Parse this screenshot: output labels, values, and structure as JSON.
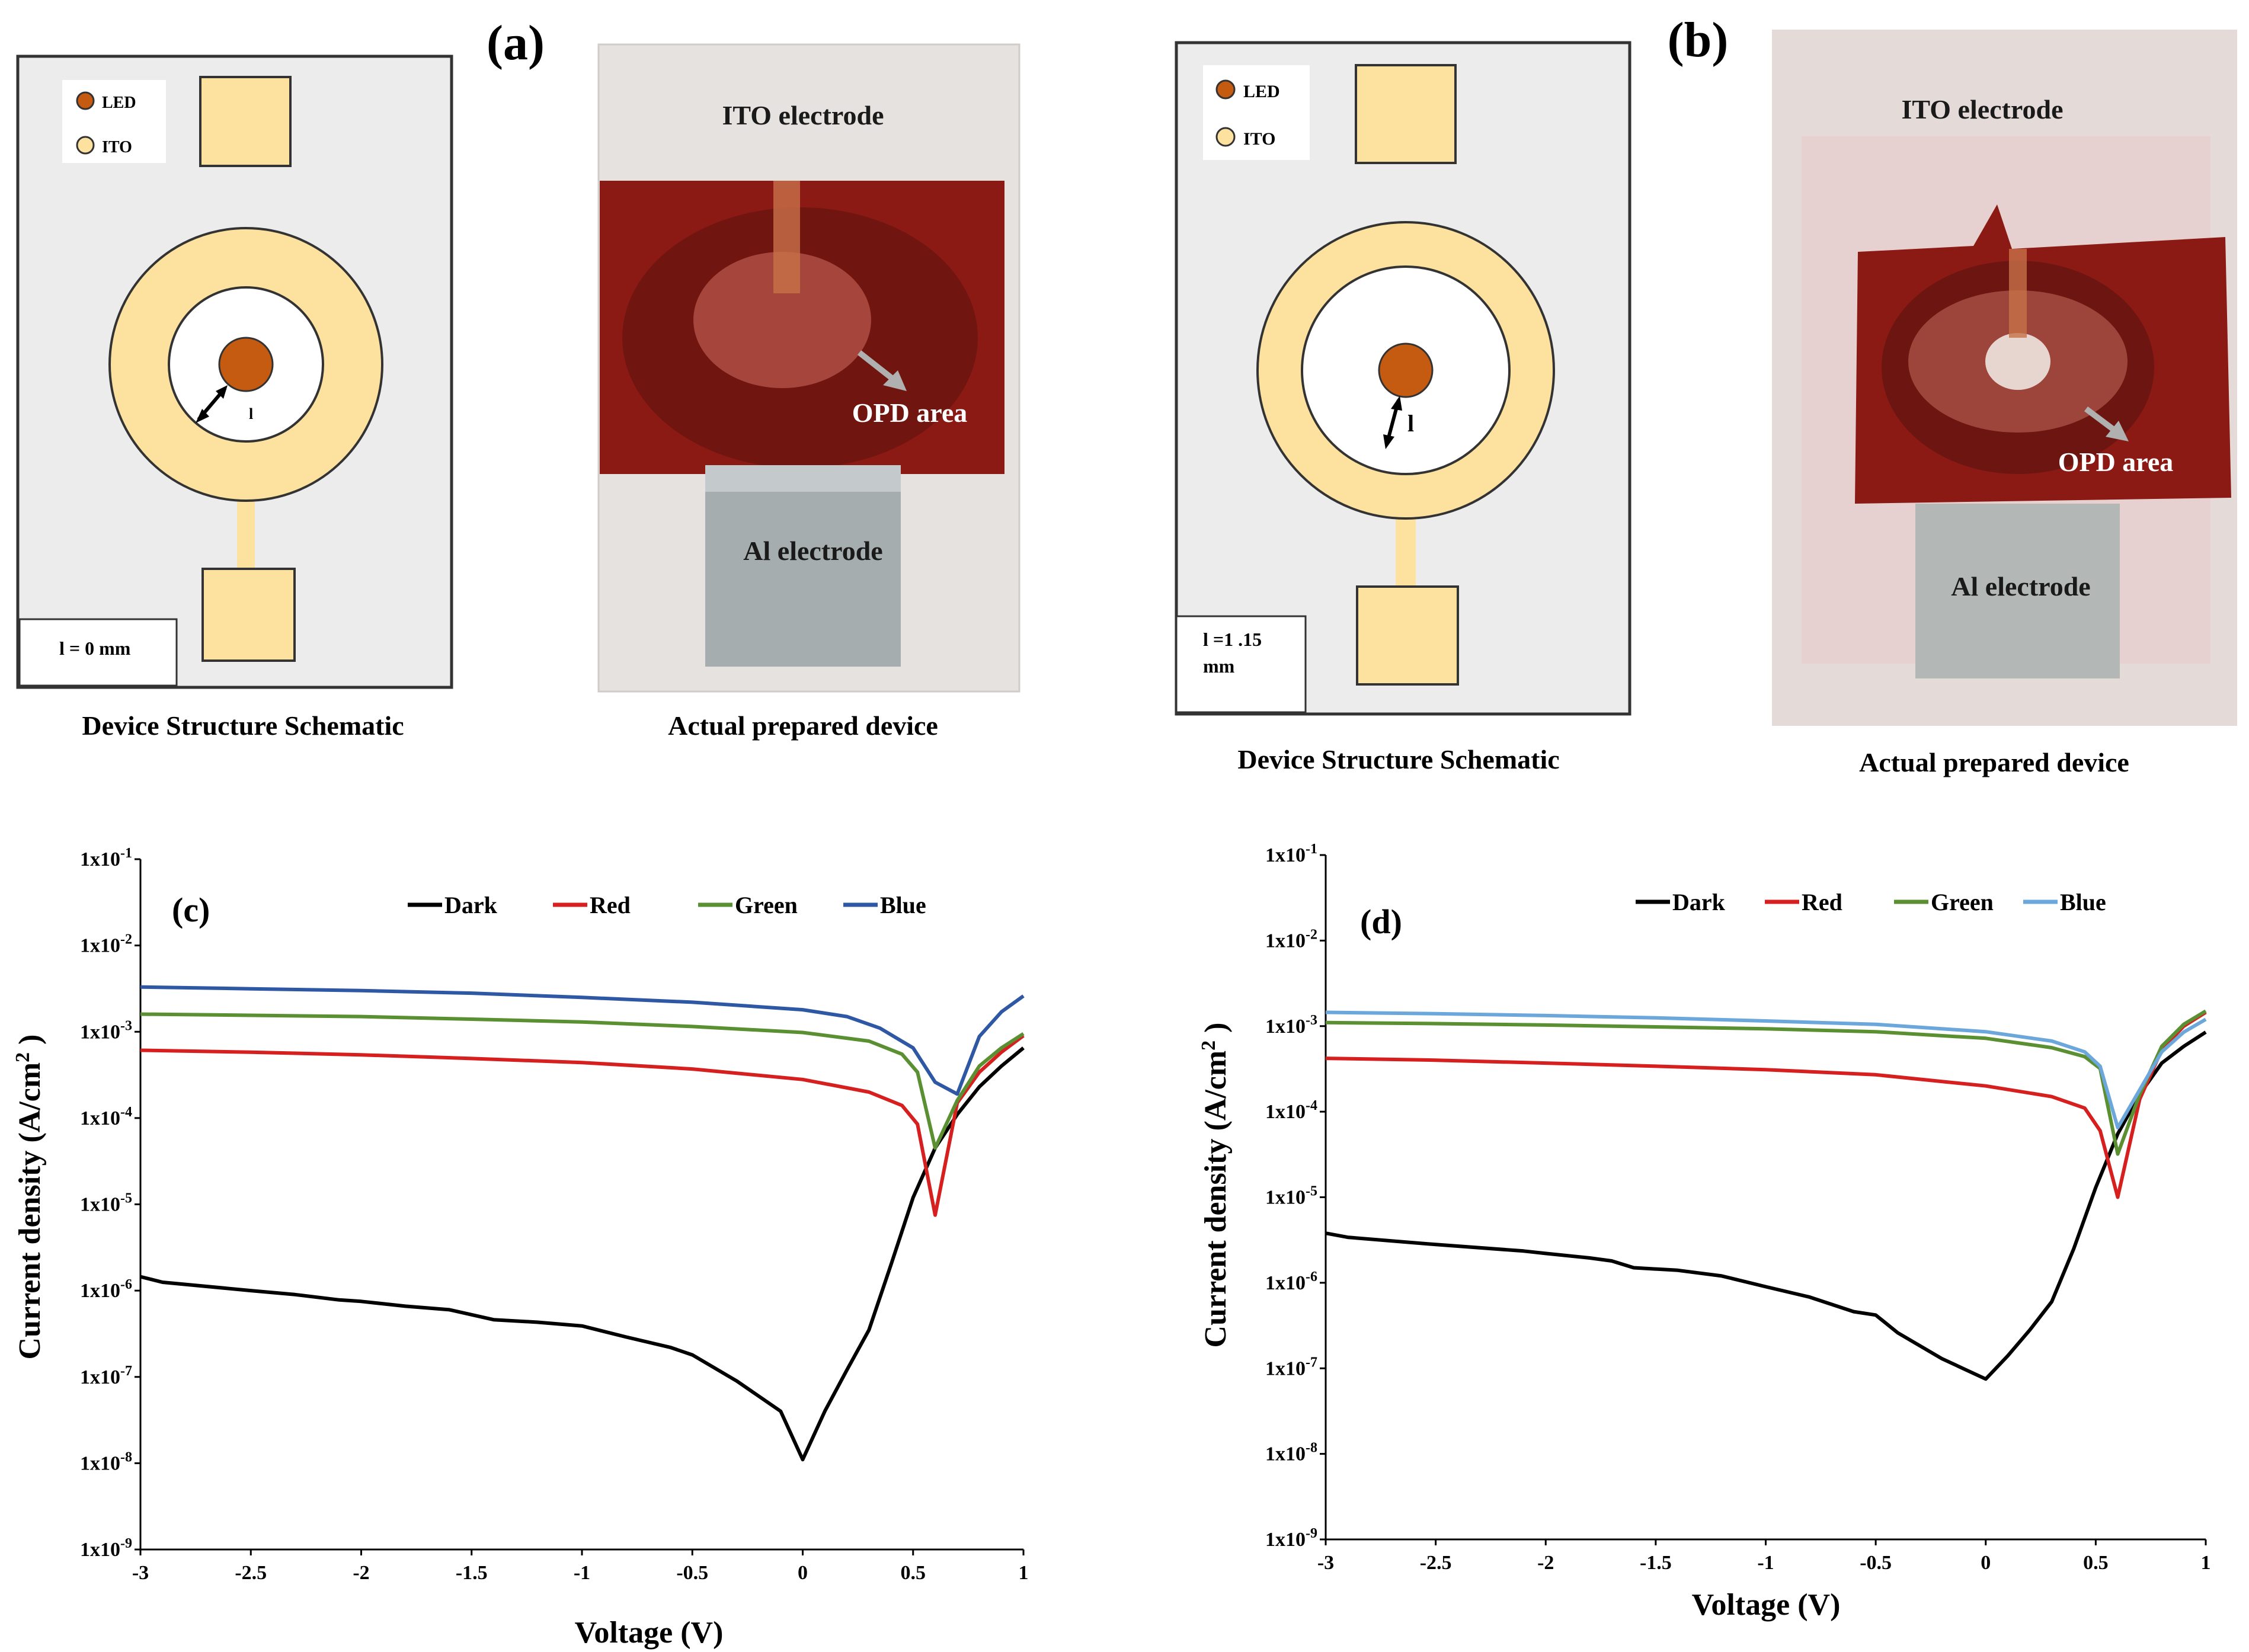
{
  "panel_a": {
    "label": "(a)",
    "schematic_title": "Device Structure Schematic",
    "legend_led": "LED",
    "legend_ito": "ITO",
    "distance_symbol": "l",
    "distance_value": "l = 0 mm",
    "photo_title": "Actual prepared device",
    "photo_ito": "ITO electrode",
    "photo_opd": "OPD area",
    "photo_al": "Al electrode"
  },
  "panel_b": {
    "label": "(b)",
    "schematic_title": "Device Structure Schematic",
    "legend_led": "LED",
    "legend_ito": "ITO",
    "distance_symbol": "l",
    "distance_value_line1": "l =1 .15",
    "distance_value_line2": "mm",
    "photo_title": "Actual prepared device",
    "photo_ito": "ITO electrode",
    "photo_opd": "OPD area",
    "photo_al": "Al electrode"
  },
  "colors": {
    "ito": "#fce29e",
    "led": "#c55a11",
    "substrate": "#ececec",
    "film": "#8c1a14",
    "dark": "#000000",
    "red": "#d62020",
    "green": "#5a8f32",
    "blue_c": "#2f58a4",
    "blue_d": "#6ca7db"
  },
  "chart_data": [
    {
      "panel": "(c)",
      "type": "line",
      "xlabel": "Voltage (V)",
      "ylabel": "Current density  (A/cm² )",
      "ylabel_main": "Current density  (A/cm",
      "ylabel_sup": "2",
      "ylabel_close": " )",
      "yscale": "log",
      "xlim": [
        -3,
        1
      ],
      "ylim_exp": [
        -9,
        -1
      ],
      "x_ticks": [
        "-3",
        "-2.5",
        "-2",
        "-1.5",
        "-1",
        "-0.5",
        "0",
        "0.5",
        "1"
      ],
      "y_tick_exps": [
        "-1",
        "-2",
        "-3",
        "-4",
        "-5",
        "-6",
        "-7",
        "-8",
        "-9"
      ],
      "series": [
        {
          "name": "Dark",
          "color": "#000000",
          "x": [
            -3,
            -2.9,
            -2.5,
            -2.3,
            -2.1,
            -2,
            -1.8,
            -1.6,
            -1.4,
            -1.2,
            -1,
            -0.8,
            -0.6,
            -0.5,
            -0.3,
            -0.1,
            0,
            0.1,
            0.2,
            0.3,
            0.4,
            0.5,
            0.6,
            0.7,
            0.8,
            0.9,
            1
          ],
          "y": [
            1.45e-06,
            1.25e-06,
            1e-06,
            9e-07,
            7.8e-07,
            7.5e-07,
            6.6e-07,
            6e-07,
            4.6e-07,
            4.3e-07,
            3.9e-07,
            2.9e-07,
            2.2e-07,
            1.8e-07,
            9e-08,
            4e-08,
            1.1e-08,
            4e-08,
            1.2e-07,
            3.5e-07,
            2e-06,
            1.2e-05,
            4.5e-05,
            0.00011,
            0.00023,
            0.0004,
            0.00065
          ]
        },
        {
          "name": "Red",
          "color": "#d62020",
          "x": [
            -3,
            -2.5,
            -2,
            -1.5,
            -1,
            -0.5,
            0,
            0.3,
            0.45,
            0.52,
            0.6,
            0.7,
            0.8,
            0.9,
            1
          ],
          "y": [
            0.00061,
            0.00058,
            0.00054,
            0.00049,
            0.00044,
            0.00037,
            0.00028,
            0.0002,
            0.00014,
            8.5e-05,
            7.5e-06,
            0.00015,
            0.00034,
            0.00058,
            0.0009
          ]
        },
        {
          "name": "Green",
          "color": "#5a8f32",
          "x": [
            -3,
            -2.5,
            -2,
            -1.5,
            -1,
            -0.5,
            0,
            0.3,
            0.45,
            0.52,
            0.6,
            0.7,
            0.8,
            0.9,
            1
          ],
          "y": [
            0.0016,
            0.00155,
            0.0015,
            0.0014,
            0.0013,
            0.00115,
            0.00098,
            0.00078,
            0.00055,
            0.00034,
            4.5e-05,
            0.00016,
            0.0004,
            0.00065,
            0.00095
          ]
        },
        {
          "name": "Blue",
          "color": "#2f58a4",
          "x": [
            -3,
            -2.5,
            -2,
            -1.5,
            -1,
            -0.5,
            0,
            0.2,
            0.35,
            0.5,
            0.6,
            0.7,
            0.8,
            0.9,
            1
          ],
          "y": [
            0.0033,
            0.00315,
            0.003,
            0.0028,
            0.0025,
            0.0022,
            0.0018,
            0.0015,
            0.0011,
            0.00065,
            0.00026,
            0.00019,
            0.00088,
            0.0017,
            0.0026
          ]
        }
      ]
    },
    {
      "panel": "(d)",
      "type": "line",
      "xlabel": "Voltage (V)",
      "ylabel": "Current density  (A/cm² )",
      "ylabel_main": "Current density  (A/cm",
      "ylabel_sup": "2",
      "ylabel_close": " )",
      "yscale": "log",
      "xlim": [
        -3,
        1
      ],
      "ylim_exp": [
        -9,
        -1
      ],
      "x_ticks": [
        "-3",
        "-2.5",
        "-2",
        "-1.5",
        "-1",
        "-0.5",
        "0",
        "0.5",
        "1"
      ],
      "y_tick_exps": [
        "-1",
        "-2",
        "-3",
        "-4",
        "-5",
        "-6",
        "-7",
        "-8",
        "-9"
      ],
      "series": [
        {
          "name": "Dark",
          "color": "#000000",
          "x": [
            -3,
            -2.9,
            -2.5,
            -2.1,
            -2,
            -1.8,
            -1.7,
            -1.6,
            -1.4,
            -1.2,
            -1,
            -0.8,
            -0.6,
            -0.5,
            -0.4,
            -0.2,
            0,
            0.1,
            0.2,
            0.3,
            0.4,
            0.5,
            0.6,
            0.7,
            0.8,
            0.9,
            1
          ],
          "y": [
            3.8e-06,
            3.4e-06,
            2.8e-06,
            2.35e-06,
            2.2e-06,
            1.95e-06,
            1.8e-06,
            1.5e-06,
            1.4e-06,
            1.2e-06,
            9e-07,
            6.8e-07,
            4.6e-07,
            4.2e-07,
            2.6e-07,
            1.3e-07,
            7.5e-08,
            1.4e-07,
            2.8e-07,
            6e-07,
            2.5e-06,
            1.3e-05,
            5.5e-05,
            0.00016,
            0.00037,
            0.00058,
            0.00085
          ]
        },
        {
          "name": "Red",
          "color": "#d62020",
          "x": [
            -3,
            -2.5,
            -2,
            -1.5,
            -1,
            -0.5,
            0,
            0.3,
            0.45,
            0.52,
            0.6,
            0.7,
            0.8,
            0.9,
            1
          ],
          "y": [
            0.00042,
            0.0004,
            0.00037,
            0.00034,
            0.00031,
            0.00027,
            0.0002,
            0.00015,
            0.00011,
            6e-05,
            1e-05,
            0.00014,
            0.00053,
            0.001,
            0.00145
          ]
        },
        {
          "name": "Green",
          "color": "#5a8f32",
          "x": [
            -3,
            -2.5,
            -2,
            -1.5,
            -1,
            -0.5,
            0,
            0.3,
            0.45,
            0.52,
            0.6,
            0.7,
            0.8,
            0.9,
            1
          ],
          "y": [
            0.0011,
            0.00107,
            0.00103,
            0.00098,
            0.00093,
            0.00086,
            0.00072,
            0.00056,
            0.00044,
            0.00032,
            3.2e-05,
            0.00016,
            0.00058,
            0.00105,
            0.0015
          ]
        },
        {
          "name": "Blue",
          "color": "#6ca7db",
          "x": [
            -3,
            -2.5,
            -2,
            -1.5,
            -1,
            -0.5,
            0,
            0.3,
            0.45,
            0.52,
            0.6,
            0.7,
            0.8,
            0.9,
            1
          ],
          "y": [
            0.00145,
            0.0014,
            0.00133,
            0.00125,
            0.00115,
            0.00105,
            0.00086,
            0.00067,
            0.0005,
            0.00034,
            6.5e-05,
            0.00018,
            0.0005,
            0.00085,
            0.0012
          ]
        }
      ]
    }
  ]
}
